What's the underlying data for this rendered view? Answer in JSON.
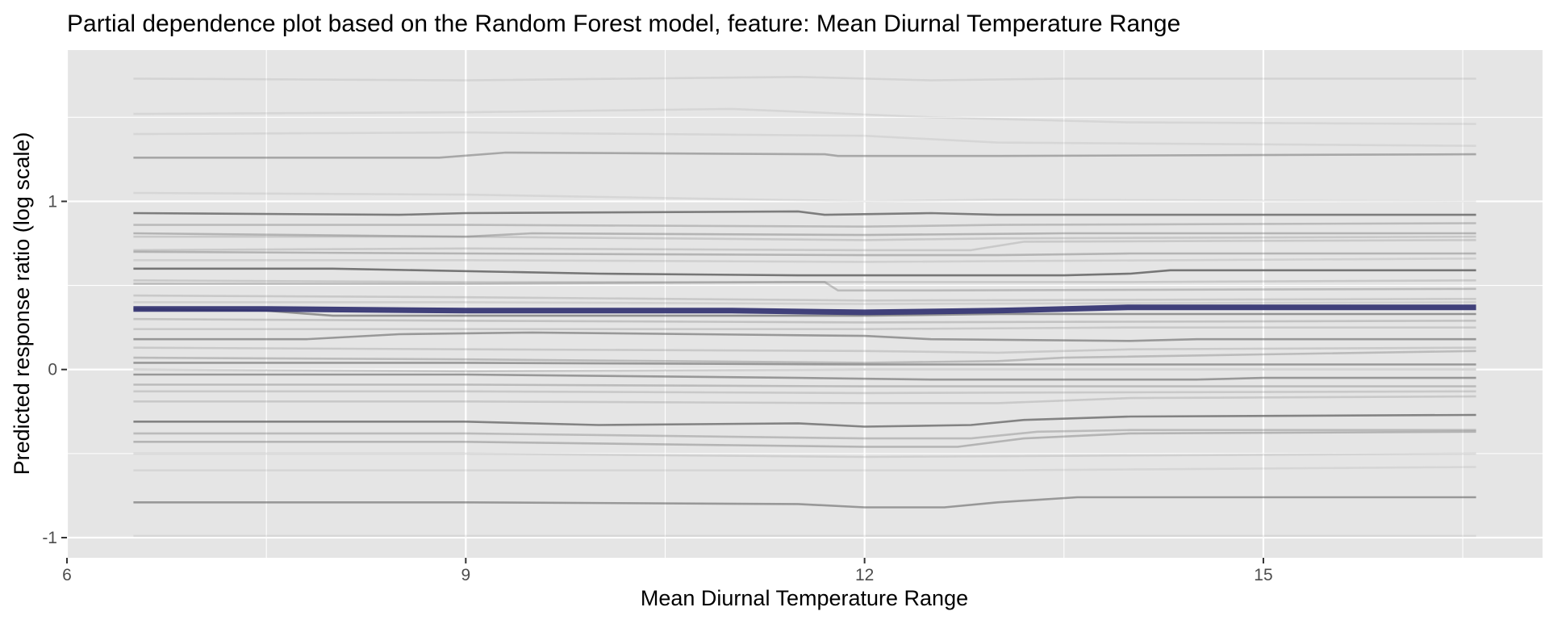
{
  "chart_data": {
    "type": "line",
    "title": "Partial dependence plot based on the Random Forest model, feature: Mean Diurnal Temperature Range",
    "xlabel": "Mean Diurnal Temperature Range",
    "ylabel": "Predicted response ratio (log scale)",
    "xlim": [
      6,
      17.1
    ],
    "ylim": [
      -1.12,
      1.9
    ],
    "x_ticks": [
      6,
      9,
      12,
      15
    ],
    "y_ticks": [
      -1,
      0,
      1
    ],
    "grid": true,
    "legend": "none",
    "colors": {
      "panel_background": "#e5e5e5",
      "grid": "#ffffff",
      "ice_line": "#5a5a5a",
      "mean_line": "#2e2e6e"
    },
    "series": [
      {
        "role": "ice",
        "opacity": 0.12,
        "x": [
          6.5,
          9.0,
          11.5,
          12.5,
          13.5,
          16.6
        ],
        "y": [
          1.73,
          1.72,
          1.74,
          1.72,
          1.73,
          1.73
        ]
      },
      {
        "role": "ice",
        "opacity": 0.1,
        "x": [
          6.5,
          9.0,
          11.0,
          12.5,
          14.0,
          16.6
        ],
        "y": [
          1.52,
          1.53,
          1.55,
          1.5,
          1.47,
          1.46
        ]
      },
      {
        "role": "ice",
        "opacity": 0.1,
        "x": [
          6.5,
          9.0,
          12.0,
          13.0,
          16.6
        ],
        "y": [
          1.4,
          1.41,
          1.39,
          1.35,
          1.33
        ]
      },
      {
        "role": "ice",
        "opacity": 0.45,
        "x": [
          6.5,
          8.8,
          9.3,
          11.7,
          11.8,
          13.0,
          16.6
        ],
        "y": [
          1.26,
          1.26,
          1.29,
          1.28,
          1.27,
          1.27,
          1.28
        ]
      },
      {
        "role": "ice",
        "opacity": 0.1,
        "x": [
          6.5,
          9.0,
          12.0,
          13.0,
          16.6
        ],
        "y": [
          1.05,
          1.04,
          1.0,
          1.01,
          1.0
        ]
      },
      {
        "role": "ice",
        "opacity": 0.75,
        "x": [
          6.5,
          8.5,
          9.0,
          11.5,
          11.7,
          12.5,
          13.0,
          16.6
        ],
        "y": [
          0.93,
          0.92,
          0.93,
          0.94,
          0.92,
          0.93,
          0.92,
          0.92
        ]
      },
      {
        "role": "ice",
        "opacity": 0.3,
        "x": [
          6.5,
          9.0,
          12.0,
          13.0,
          16.6
        ],
        "y": [
          0.86,
          0.86,
          0.85,
          0.86,
          0.87
        ]
      },
      {
        "role": "ice",
        "opacity": 0.35,
        "x": [
          6.5,
          9.0,
          9.5,
          12.0,
          13.5,
          16.6
        ],
        "y": [
          0.81,
          0.79,
          0.81,
          0.8,
          0.81,
          0.81
        ]
      },
      {
        "role": "ice",
        "opacity": 0.2,
        "x": [
          6.5,
          9.0,
          12.0,
          13.0,
          16.6
        ],
        "y": [
          0.79,
          0.79,
          0.77,
          0.78,
          0.79
        ]
      },
      {
        "role": "ice",
        "opacity": 0.2,
        "x": [
          6.5,
          9.0,
          12.0,
          12.8,
          13.2,
          16.6
        ],
        "y": [
          0.71,
          0.72,
          0.71,
          0.71,
          0.76,
          0.77
        ]
      },
      {
        "role": "ice",
        "opacity": 0.35,
        "x": [
          6.5,
          9.0,
          12.0,
          13.0,
          14.0,
          16.6
        ],
        "y": [
          0.7,
          0.69,
          0.68,
          0.68,
          0.69,
          0.69
        ]
      },
      {
        "role": "ice",
        "opacity": 0.15,
        "x": [
          6.5,
          9.0,
          12.0,
          16.6
        ],
        "y": [
          0.65,
          0.65,
          0.64,
          0.66
        ]
      },
      {
        "role": "ice",
        "opacity": 0.8,
        "x": [
          6.5,
          8.0,
          10.0,
          11.5,
          12.0,
          13.5,
          14.0,
          14.3,
          16.6
        ],
        "y": [
          0.6,
          0.6,
          0.57,
          0.56,
          0.56,
          0.56,
          0.57,
          0.59,
          0.59
        ]
      },
      {
        "role": "ice",
        "opacity": 0.2,
        "x": [
          6.5,
          9.0,
          12.0,
          14.0,
          16.6
        ],
        "y": [
          0.53,
          0.52,
          0.52,
          0.52,
          0.53
        ]
      },
      {
        "role": "ice",
        "opacity": 0.3,
        "x": [
          6.5,
          9.0,
          11.5,
          11.7,
          11.8,
          12.5,
          16.6
        ],
        "y": [
          0.51,
          0.51,
          0.52,
          0.52,
          0.47,
          0.47,
          0.48
        ]
      },
      {
        "role": "ice",
        "opacity": 0.2,
        "x": [
          6.5,
          9.0,
          12.0,
          16.6
        ],
        "y": [
          0.44,
          0.43,
          0.41,
          0.42
        ]
      },
      {
        "role": "ice",
        "opacity": 0.15,
        "x": [
          6.5,
          9.0,
          12.0,
          16.6
        ],
        "y": [
          0.4,
          0.4,
          0.39,
          0.4
        ]
      },
      {
        "role": "ice",
        "opacity": 0.6,
        "x": [
          6.5,
          7.5,
          8.0,
          12.0,
          13.0,
          16.6
        ],
        "y": [
          0.36,
          0.35,
          0.32,
          0.32,
          0.33,
          0.33
        ]
      },
      {
        "role": "ice",
        "opacity": 0.25,
        "x": [
          6.5,
          9.0,
          12.0,
          16.6
        ],
        "y": [
          0.3,
          0.29,
          0.28,
          0.29
        ]
      },
      {
        "role": "ice",
        "opacity": 0.2,
        "x": [
          6.5,
          9.0,
          12.0,
          14.0,
          16.6
        ],
        "y": [
          0.24,
          0.24,
          0.24,
          0.25,
          0.25
        ]
      },
      {
        "role": "ice",
        "opacity": 0.55,
        "x": [
          6.5,
          7.8,
          8.5,
          9.5,
          12.0,
          12.5,
          14.0,
          14.5,
          16.6
        ],
        "y": [
          0.18,
          0.18,
          0.21,
          0.22,
          0.2,
          0.18,
          0.17,
          0.18,
          0.18
        ]
      },
      {
        "role": "ice",
        "opacity": 0.2,
        "x": [
          6.5,
          9.0,
          12.0,
          13.0,
          14.0,
          16.6
        ],
        "y": [
          0.13,
          0.12,
          0.11,
          0.1,
          0.12,
          0.13
        ]
      },
      {
        "role": "ice",
        "opacity": 0.3,
        "x": [
          6.5,
          9.0,
          12.0,
          13.0,
          13.5,
          15.0,
          16.6
        ],
        "y": [
          0.07,
          0.06,
          0.04,
          0.05,
          0.07,
          0.09,
          0.11
        ]
      },
      {
        "role": "ice",
        "opacity": 0.55,
        "x": [
          6.5,
          9.0,
          12.0,
          13.0,
          16.6
        ],
        "y": [
          0.04,
          0.04,
          0.03,
          0.03,
          0.03
        ]
      },
      {
        "role": "ice",
        "opacity": 0.25,
        "x": [
          6.5,
          9.0,
          12.0,
          16.6
        ],
        "y": [
          0.0,
          -0.01,
          0.0,
          0.0
        ]
      },
      {
        "role": "ice",
        "opacity": 0.55,
        "x": [
          6.5,
          9.0,
          11.5,
          12.5,
          13.0,
          14.5,
          15.0,
          16.6
        ],
        "y": [
          -0.03,
          -0.03,
          -0.05,
          -0.06,
          -0.06,
          -0.06,
          -0.05,
          -0.05
        ]
      },
      {
        "role": "ice",
        "opacity": 0.3,
        "x": [
          6.5,
          9.0,
          12.0,
          14.0,
          16.6
        ],
        "y": [
          -0.09,
          -0.09,
          -0.1,
          -0.1,
          -0.1
        ]
      },
      {
        "role": "ice",
        "opacity": 0.2,
        "x": [
          6.5,
          9.0,
          12.0,
          16.6
        ],
        "y": [
          -0.13,
          -0.13,
          -0.14,
          -0.13
        ]
      },
      {
        "role": "ice",
        "opacity": 0.2,
        "x": [
          6.5,
          9.0,
          12.0,
          13.0,
          14.0,
          16.6
        ],
        "y": [
          -0.19,
          -0.19,
          -0.2,
          -0.2,
          -0.17,
          -0.16
        ]
      },
      {
        "role": "ice",
        "opacity": 0.7,
        "x": [
          6.5,
          9.0,
          10.0,
          11.5,
          12.0,
          12.8,
          13.2,
          14.0,
          16.6
        ],
        "y": [
          -0.31,
          -0.31,
          -0.33,
          -0.32,
          -0.34,
          -0.33,
          -0.3,
          -0.28,
          -0.27
        ]
      },
      {
        "role": "ice",
        "opacity": 0.3,
        "x": [
          6.5,
          9.0,
          12.0,
          12.8,
          13.3,
          14.0,
          16.6
        ],
        "y": [
          -0.38,
          -0.38,
          -0.41,
          -0.41,
          -0.37,
          -0.36,
          -0.36
        ]
      },
      {
        "role": "ice",
        "opacity": 0.35,
        "x": [
          6.5,
          9.0,
          11.0,
          12.0,
          12.7,
          13.2,
          14.0,
          16.6
        ],
        "y": [
          -0.43,
          -0.43,
          -0.45,
          -0.46,
          -0.46,
          -0.41,
          -0.38,
          -0.37
        ]
      },
      {
        "role": "ice",
        "opacity": 0.15,
        "x": [
          6.5,
          9.0,
          12.0,
          16.6
        ],
        "y": [
          -0.5,
          -0.5,
          -0.52,
          -0.5
        ]
      },
      {
        "role": "ice",
        "opacity": 0.1,
        "x": [
          6.5,
          9.0,
          12.0,
          13.0,
          16.6
        ],
        "y": [
          -0.6,
          -0.6,
          -0.6,
          -0.6,
          -0.58
        ]
      },
      {
        "role": "ice",
        "opacity": 0.55,
        "x": [
          6.5,
          9.0,
          11.5,
          12.0,
          12.6,
          13.0,
          13.6,
          16.6
        ],
        "y": [
          -0.79,
          -0.79,
          -0.8,
          -0.82,
          -0.82,
          -0.79,
          -0.76,
          -0.76
        ]
      },
      {
        "role": "ice",
        "opacity": 0.1,
        "x": [
          6.5,
          9.0,
          12.0,
          16.6
        ],
        "y": [
          -0.99,
          -0.99,
          -0.99,
          -0.99
        ]
      },
      {
        "role": "mean",
        "opacity": 0.9,
        "x": [
          6.5,
          7.5,
          9.0,
          11.0,
          12.0,
          13.0,
          14.0,
          16.6
        ],
        "y": [
          0.36,
          0.36,
          0.35,
          0.35,
          0.34,
          0.35,
          0.37,
          0.37
        ]
      }
    ]
  }
}
